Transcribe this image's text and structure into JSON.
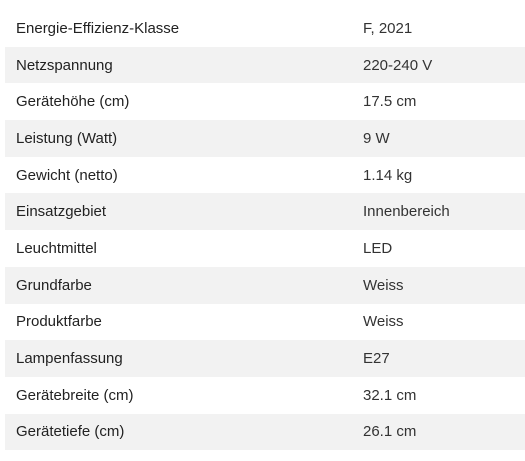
{
  "specs": [
    {
      "label": "Energie-Effizienz-Klasse",
      "value": "F, 2021"
    },
    {
      "label": "Netzspannung",
      "value": "220-240 V"
    },
    {
      "label": "Gerätehöhe (cm)",
      "value": "17.5 cm"
    },
    {
      "label": "Leistung (Watt)",
      "value": "9 W"
    },
    {
      "label": "Gewicht (netto)",
      "value": "1.14 kg"
    },
    {
      "label": "Einsatzgebiet",
      "value": "Innenbereich"
    },
    {
      "label": "Leuchtmittel",
      "value": "LED"
    },
    {
      "label": "Grundfarbe",
      "value": "Weiss"
    },
    {
      "label": "Produktfarbe",
      "value": "Weiss"
    },
    {
      "label": "Lampenfassung",
      "value": "E27"
    },
    {
      "label": "Gerätebreite (cm)",
      "value": "32.1 cm"
    },
    {
      "label": "Gerätetiefe (cm)",
      "value": "26.1 cm"
    }
  ],
  "colors": {
    "row_stripe": "#f2f2f2",
    "text": "#222222"
  }
}
